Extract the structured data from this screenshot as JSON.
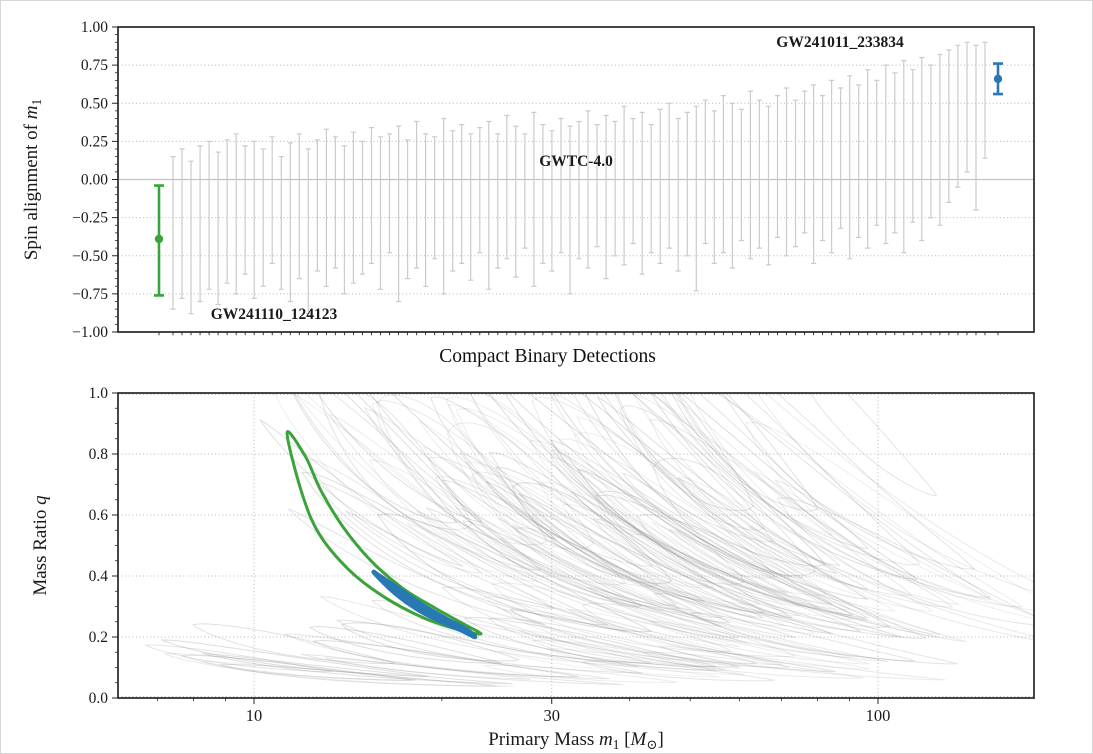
{
  "labels": {
    "mid_title": "Compact Binary Detections",
    "top_ylabel_segments": [
      {
        "t": "Spin alignment of  ",
        "i": false,
        "sub": false
      },
      {
        "t": "m",
        "i": true,
        "sub": false
      },
      {
        "t": "1",
        "i": false,
        "sub": true
      }
    ],
    "bottom_ylabel_segments": [
      {
        "t": "Mass Ratio  ",
        "i": false,
        "sub": false
      },
      {
        "t": "q",
        "i": true,
        "sub": false
      }
    ],
    "bottom_xlabel_segments": [
      {
        "t": "Primary Mass  ",
        "i": false,
        "sub": false
      },
      {
        "t": "m",
        "i": true,
        "sub": false
      },
      {
        "t": "1",
        "i": false,
        "sub": true
      },
      {
        "t": " [",
        "i": false,
        "sub": false
      },
      {
        "t": "M",
        "i": true,
        "sub": false
      },
      {
        "t": "⊙",
        "i": false,
        "sub": true
      },
      {
        "t": "]",
        "i": false,
        "sub": false
      }
    ],
    "top_ytick_labels": [
      "1.00",
      "0.75",
      "0.50",
      "0.25",
      "0.00",
      "−0.25",
      "−0.50",
      "−0.75",
      "−1.00"
    ],
    "bottom_ytick_labels": [
      "1.0",
      "0.8",
      "0.6",
      "0.4",
      "0.2",
      "0.0"
    ],
    "bottom_xtick_labels": [
      "10",
      "30",
      "100"
    ],
    "annotations": {
      "catalog": "GWTC-4.0",
      "green_event": "GW241110_124123",
      "blue_event": "GW241011_233834"
    }
  },
  "colors": {
    "green": "#3aa33a",
    "blue": "#2878b4",
    "gray_bar": "#cbcbcb",
    "catalog_text": "#8f8f8f",
    "contour_bg": "#8a8a8a",
    "spine": "#262626",
    "grid": "#a8a8a8",
    "zero_line": "#c4c4c4",
    "text": "#1a1a1a"
  },
  "chart_data": [
    {
      "type": "errorbar",
      "title": "",
      "xlabel": "Compact Binary Detections",
      "ylabel": "Spin alignment of m_1",
      "ylim": [
        -1.0,
        1.0
      ],
      "ytick_values": [
        1.0,
        0.75,
        0.5,
        0.25,
        0.0,
        -0.25,
        -0.5,
        -0.75,
        -1.0
      ],
      "grid": "horizontal dotted, solid line at 0",
      "catalog_label": "GWTC-4.0",
      "events": {
        "green": {
          "name": "GW241110_124123",
          "median": -0.39,
          "interval": [
            -0.76,
            -0.04
          ]
        },
        "blue": {
          "name": "GW241011_233834",
          "median": 0.66,
          "interval": [
            0.56,
            0.76
          ]
        }
      },
      "gray_bars": [
        [
          -0.85,
          0.15
        ],
        [
          -0.78,
          0.2
        ],
        [
          -0.88,
          0.12
        ],
        [
          -0.8,
          0.22
        ],
        [
          -0.72,
          0.25
        ],
        [
          -0.82,
          0.18
        ],
        [
          -0.68,
          0.26
        ],
        [
          -0.75,
          0.3
        ],
        [
          -0.62,
          0.22
        ],
        [
          -0.78,
          0.25
        ],
        [
          -0.7,
          0.2
        ],
        [
          -0.55,
          0.28
        ],
        [
          -0.72,
          0.15
        ],
        [
          -0.8,
          0.24
        ],
        [
          -0.65,
          0.3
        ],
        [
          -0.88,
          0.2
        ],
        [
          -0.6,
          0.26
        ],
        [
          -0.7,
          0.33
        ],
        [
          -0.58,
          0.28
        ],
        [
          -0.75,
          0.22
        ],
        [
          -0.68,
          0.31
        ],
        [
          -0.62,
          0.25
        ],
        [
          -0.55,
          0.34
        ],
        [
          -0.72,
          0.28
        ],
        [
          -0.48,
          0.3
        ],
        [
          -0.8,
          0.35
        ],
        [
          -0.65,
          0.26
        ],
        [
          -0.58,
          0.38
        ],
        [
          -0.7,
          0.3
        ],
        [
          -0.52,
          0.28
        ],
        [
          -0.75,
          0.4
        ],
        [
          -0.6,
          0.32
        ],
        [
          -0.55,
          0.36
        ],
        [
          -0.66,
          0.3
        ],
        [
          -0.48,
          0.34
        ],
        [
          -0.72,
          0.38
        ],
        [
          -0.58,
          0.3
        ],
        [
          -0.52,
          0.42
        ],
        [
          -0.64,
          0.35
        ],
        [
          -0.45,
          0.3
        ],
        [
          -0.7,
          0.44
        ],
        [
          -0.55,
          0.36
        ],
        [
          -0.6,
          0.32
        ],
        [
          -0.48,
          0.4
        ],
        [
          -0.75,
          0.35
        ],
        [
          -0.52,
          0.38
        ],
        [
          -0.58,
          0.45
        ],
        [
          -0.44,
          0.36
        ],
        [
          -0.65,
          0.42
        ],
        [
          -0.5,
          0.38
        ],
        [
          -0.56,
          0.48
        ],
        [
          -0.42,
          0.4
        ],
        [
          -0.62,
          0.44
        ],
        [
          -0.48,
          0.36
        ],
        [
          -0.55,
          0.46
        ],
        [
          -0.45,
          0.5
        ],
        [
          -0.6,
          0.4
        ],
        [
          -0.5,
          0.44
        ],
        [
          -0.73,
          0.48
        ],
        [
          -0.42,
          0.52
        ],
        [
          -0.55,
          0.45
        ],
        [
          -0.48,
          0.55
        ],
        [
          -0.58,
          0.5
        ],
        [
          -0.4,
          0.46
        ],
        [
          -0.52,
          0.58
        ],
        [
          -0.45,
          0.52
        ],
        [
          -0.56,
          0.48
        ],
        [
          -0.38,
          0.55
        ],
        [
          -0.5,
          0.6
        ],
        [
          -0.44,
          0.52
        ],
        [
          -0.35,
          0.58
        ],
        [
          -0.55,
          0.62
        ],
        [
          -0.4,
          0.55
        ],
        [
          -0.48,
          0.65
        ],
        [
          -0.32,
          0.6
        ],
        [
          -0.52,
          0.68
        ],
        [
          -0.38,
          0.62
        ],
        [
          -0.45,
          0.72
        ],
        [
          -0.3,
          0.65
        ],
        [
          -0.42,
          0.75
        ],
        [
          -0.35,
          0.7
        ],
        [
          -0.48,
          0.78
        ],
        [
          -0.28,
          0.72
        ],
        [
          -0.4,
          0.8
        ],
        [
          -0.25,
          0.75
        ],
        [
          -0.3,
          0.82
        ],
        [
          -0.15,
          0.85
        ],
        [
          -0.05,
          0.88
        ],
        [
          0.05,
          0.9
        ],
        [
          -0.2,
          0.88
        ],
        [
          0.14,
          0.9
        ]
      ]
    },
    {
      "type": "contour",
      "xlabel": "Primary Mass m_1 [M_sun]",
      "ylabel": "Mass Ratio q",
      "xscale": "log",
      "xlim": [
        6.1,
        178
      ],
      "ylim": [
        0.0,
        1.0
      ],
      "xtick_values": [
        10,
        30,
        100
      ],
      "xminor_values": [
        7,
        8,
        9,
        20,
        40,
        50,
        60,
        70,
        80,
        90
      ],
      "ytick_values": [
        1.0,
        0.8,
        0.6,
        0.4,
        0.2,
        0.0
      ],
      "green_outline_m1_q": [
        [
          11.3,
          0.87
        ],
        [
          11.9,
          0.68
        ],
        [
          12.7,
          0.54
        ],
        [
          14.2,
          0.42
        ],
        [
          16.2,
          0.33
        ],
        [
          18.6,
          0.265
        ],
        [
          21.2,
          0.225
        ],
        [
          23.1,
          0.21
        ],
        [
          21.8,
          0.24
        ],
        [
          19.5,
          0.295
        ],
        [
          17.3,
          0.36
        ],
        [
          15.4,
          0.45
        ],
        [
          13.9,
          0.56
        ],
        [
          12.8,
          0.68
        ],
        [
          12.1,
          0.79
        ]
      ],
      "blue_outline_m1_q": [
        [
          15.6,
          0.41
        ],
        [
          16.8,
          0.345
        ],
        [
          18.3,
          0.29
        ],
        [
          20.0,
          0.25
        ],
        [
          21.7,
          0.218
        ],
        [
          22.6,
          0.2
        ],
        [
          21.9,
          0.225
        ],
        [
          20.3,
          0.26
        ],
        [
          18.6,
          0.305
        ],
        [
          17.0,
          0.36
        ],
        [
          15.9,
          0.4
        ]
      ],
      "background_contours": {
        "description": "gray credible-region contours of GWTC-4.0 catalog events",
        "count": 140,
        "seed": 11,
        "opacity": 0.2
      }
    }
  ]
}
